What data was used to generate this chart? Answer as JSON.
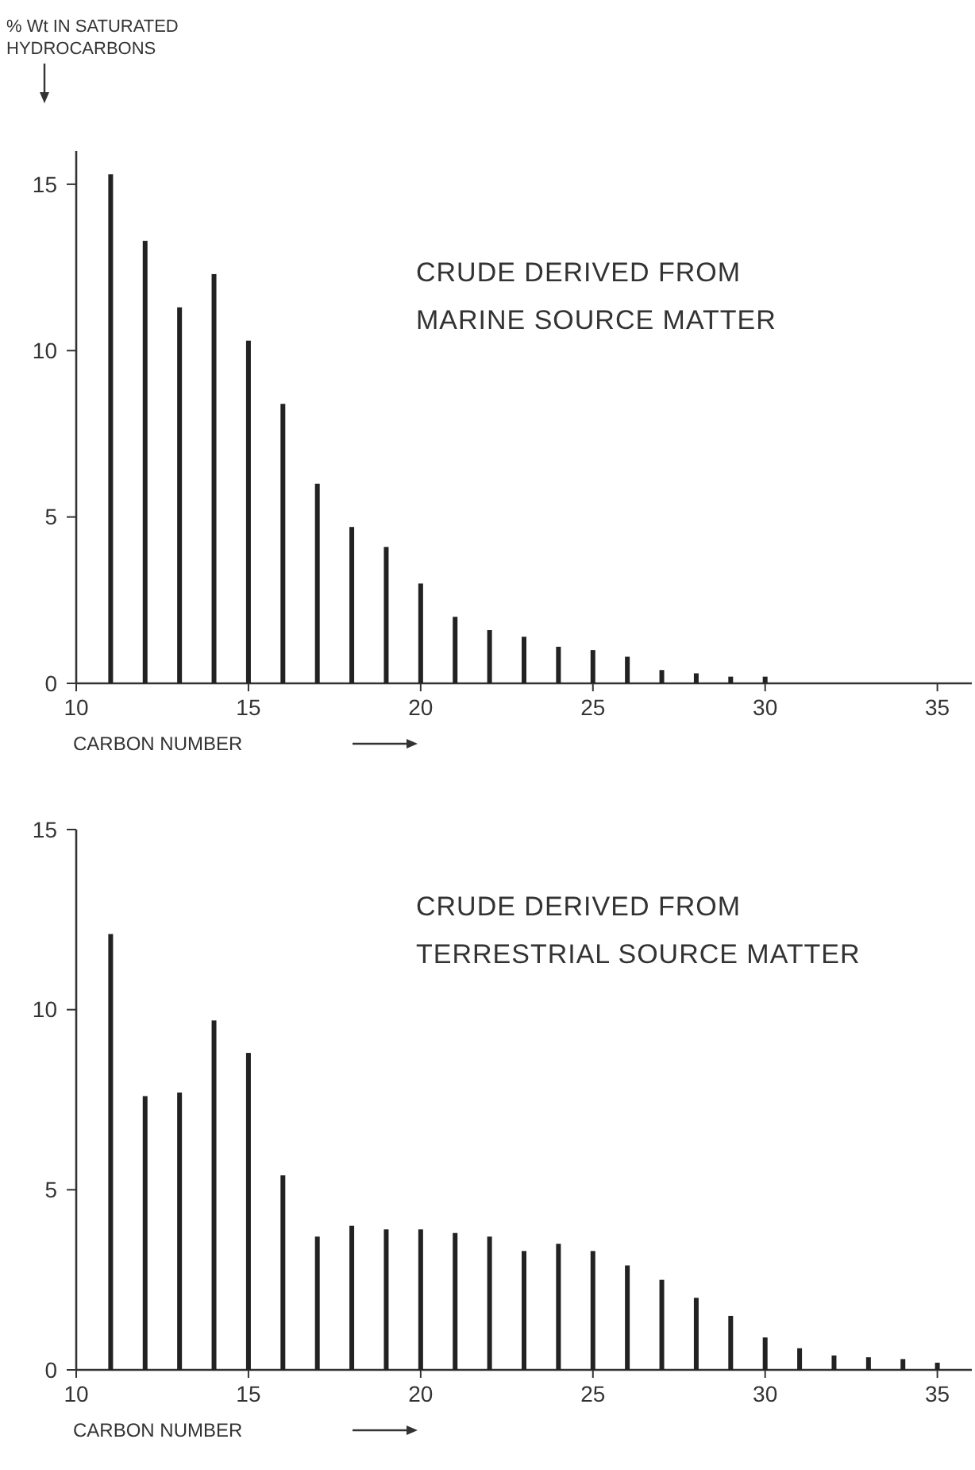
{
  "chart_data": [
    {
      "type": "bar",
      "ylabel": "% Wt IN SATURATED HYDROCARBONS",
      "xlabel": "CARBON NUMBER",
      "annotations": [
        "CRUDE DERIVED FROM\nMARINE SOURCE MATTER"
      ],
      "x": [
        11,
        12,
        13,
        14,
        15,
        16,
        17,
        18,
        19,
        20,
        21,
        22,
        23,
        24,
        25,
        26,
        27,
        28,
        29,
        30
      ],
      "values": [
        15.3,
        13.3,
        11.3,
        12.3,
        10.3,
        8.4,
        6.0,
        4.7,
        4.1,
        3.0,
        2.0,
        1.6,
        1.4,
        1.1,
        1.0,
        0.8,
        0.4,
        0.3,
        0.2,
        0.2
      ],
      "color": "#222222",
      "xlim": [
        10,
        36
      ],
      "xticks": [
        10,
        15,
        20,
        25,
        30,
        35
      ],
      "ylim": [
        0,
        16
      ],
      "yticks": [
        0,
        5,
        10,
        15
      ],
      "grid": false
    },
    {
      "type": "bar",
      "xlabel": "CARBON NUMBER",
      "annotations": [
        "CRUDE DERIVED FROM\nTERRESTRIAL SOURCE MATTER"
      ],
      "x": [
        11,
        12,
        13,
        14,
        15,
        16,
        17,
        18,
        19,
        20,
        21,
        22,
        23,
        24,
        25,
        26,
        27,
        28,
        29,
        30,
        31,
        32,
        33,
        34,
        35
      ],
      "values": [
        12.1,
        7.6,
        7.7,
        9.7,
        8.8,
        5.4,
        3.7,
        4.0,
        3.9,
        3.9,
        3.8,
        3.7,
        3.3,
        3.5,
        3.3,
        2.9,
        2.5,
        2.0,
        1.5,
        0.9,
        0.6,
        0.4,
        0.35,
        0.3,
        0.2
      ],
      "color": "#222222",
      "xlim": [
        10,
        36
      ],
      "xticks": [
        10,
        15,
        20,
        25,
        30,
        35
      ],
      "ylim": [
        0,
        15
      ],
      "yticks": [
        0,
        5,
        10,
        15
      ],
      "grid": false
    }
  ]
}
